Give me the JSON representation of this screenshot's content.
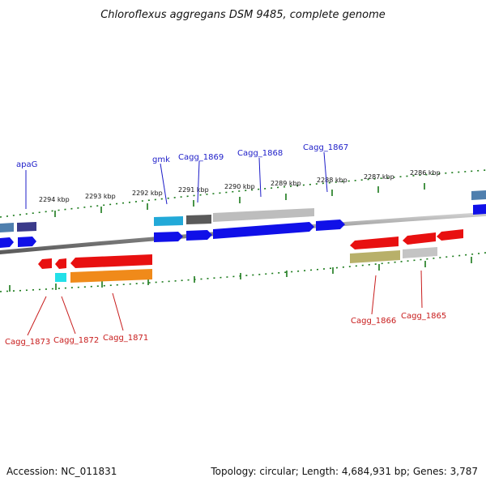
{
  "title": "Chloroflexus aggregans DSM 9485, complete genome",
  "scale_labels": [
    "2294 kbp",
    "2293 kbp",
    "2292 kbp",
    "2291 kbp",
    "2290 kbp",
    "2289 kbp",
    "2288 kbp",
    "2287 kbp",
    "2286 kbp"
  ],
  "gene_labels_top": [
    "apaG",
    "gmk",
    "Cagg_1869",
    "Cagg_1868",
    "Cagg_1867"
  ],
  "gene_labels_bottom": [
    "Cagg_1873",
    "Cagg_1872",
    "Cagg_1871",
    "Cagg_1866",
    "Cagg_1865"
  ],
  "footer": {
    "accession": "Accession: NC_011831",
    "summary": "Topology: circular; Length: 4,684,931 bp; Genes: 3,787"
  },
  "colors": {
    "forward_cds": "#1010e8",
    "reverse_cds": "#e81010",
    "backbone": "#888888",
    "ticks": "#1a7a1a",
    "label_blue": "#1c1cc8",
    "label_red": "#c81c1c"
  }
}
